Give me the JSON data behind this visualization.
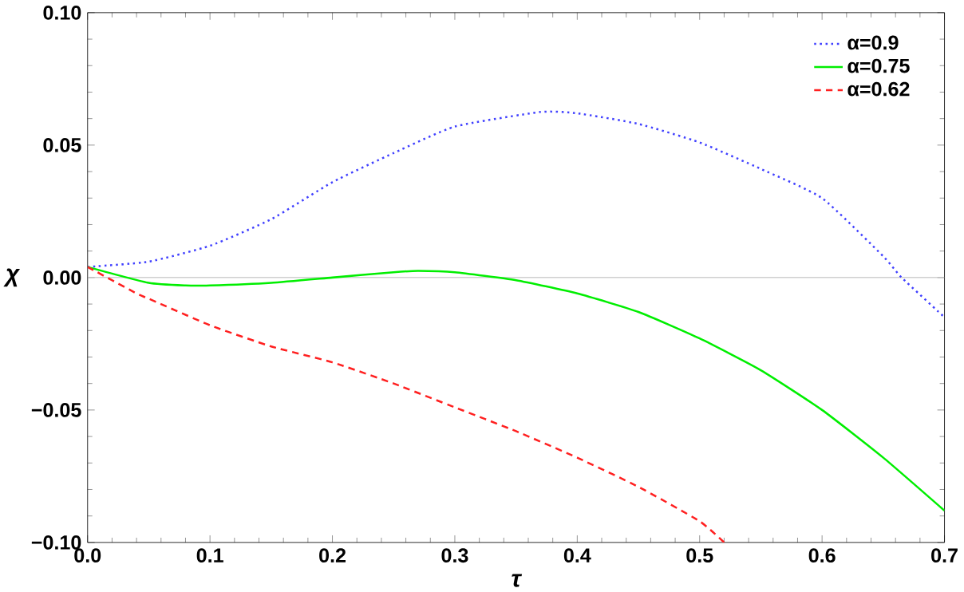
{
  "chart_data": {
    "type": "line",
    "xlabel": "τ",
    "ylabel": "χ",
    "xlim": [
      0,
      0.7
    ],
    "ylim": [
      -0.1,
      0.1
    ],
    "xticks": [
      {
        "value": 0,
        "label": "0.0"
      },
      0.1,
      0.2,
      0.3,
      0.4,
      0.5,
      0.6,
      0.7
    ],
    "yticks": [
      {
        "value": -0.1,
        "label": "−0.10"
      },
      {
        "value": -0.05,
        "label": "−0.05"
      },
      {
        "value": 0,
        "label": "0.00"
      },
      0.05,
      {
        "value": 0.1,
        "label": "0.10"
      }
    ],
    "legend": "top right",
    "grid": false,
    "ref_lines": [
      {
        "axis": "y",
        "value": 0,
        "color": "#c0c0c0"
      }
    ],
    "series": [
      {
        "name": "α=0.9",
        "color": "#4040ff",
        "line_style": "dotted",
        "x": [
          0,
          0.05,
          0.1,
          0.15,
          0.2,
          0.25,
          0.3,
          0.37,
          0.4,
          0.45,
          0.5,
          0.55,
          0.6,
          0.65,
          0.665,
          0.7
        ],
        "values": [
          0.004,
          0.006,
          0.012,
          0.022,
          0.036,
          0.047,
          0.057,
          0.0625,
          0.062,
          0.058,
          0.051,
          0.041,
          0.03,
          0.008,
          0,
          -0.015
        ]
      },
      {
        "name": "α=0.75",
        "color": "#00ee00",
        "line_style": "solid",
        "x": [
          0,
          0.05,
          0.08,
          0.1,
          0.15,
          0.2,
          0.25,
          0.27,
          0.3,
          0.35,
          0.4,
          0.45,
          0.5,
          0.55,
          0.6,
          0.65,
          0.7
        ],
        "values": [
          0.004,
          -0.002,
          -0.003,
          -0.003,
          -0.002,
          0,
          0.002,
          0.0025,
          0.002,
          -0.001,
          -0.006,
          -0.013,
          -0.023,
          -0.035,
          -0.05,
          -0.068,
          -0.088
        ]
      },
      {
        "name": "α=0.62",
        "color": "#ff2020",
        "line_style": "dashed",
        "x": [
          0,
          0.04,
          0.05,
          0.1,
          0.15,
          0.2,
          0.25,
          0.3,
          0.35,
          0.4,
          0.45,
          0.5,
          0.52
        ],
        "values": [
          0.004,
          -0.006,
          -0.008,
          -0.018,
          -0.026,
          -0.032,
          -0.04,
          -0.049,
          -0.058,
          -0.068,
          -0.079,
          -0.092,
          -0.1
        ]
      }
    ]
  }
}
